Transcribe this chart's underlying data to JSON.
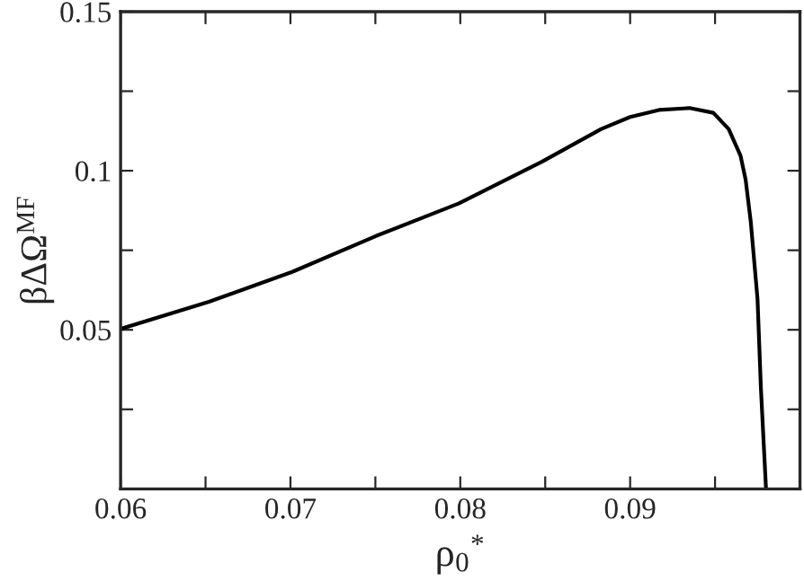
{
  "chart_data": {
    "type": "line",
    "xlabel": "ρ$_{0}$$^{*}$",
    "ylabel": "βΔΩ$^{MF}$",
    "x": [
      0.06,
      0.0652,
      0.0701,
      0.075,
      0.0799,
      0.0848,
      0.0883,
      0.09,
      0.0917,
      0.0935,
      0.0949,
      0.0958,
      0.0965,
      0.0968,
      0.0971,
      0.0975,
      0.0977,
      0.098
    ],
    "series": [
      {
        "color": "#000000",
        "values": [
          0.0503,
          0.0588,
          0.0682,
          0.0794,
          0.0897,
          0.1028,
          0.1131,
          0.1169,
          0.1191,
          0.1197,
          0.1182,
          0.1131,
          0.1047,
          0.0972,
          0.0841,
          0.0597,
          0.0316,
          0.0
        ]
      }
    ],
    "xlim": [
      0.06,
      0.1
    ],
    "ylim": [
      0,
      0.15
    ],
    "xticks": [
      0.06,
      {
        "value": 0.065,
        "label": null
      },
      0.07,
      {
        "value": 0.075,
        "label": null
      },
      0.08,
      {
        "value": 0.085,
        "label": null
      },
      0.09,
      {
        "value": 0.095,
        "label": null
      }
    ],
    "yticks": [
      {
        "value": 0.025,
        "label": null
      },
      0.05,
      {
        "value": 0.075,
        "label": null
      },
      0.1,
      {
        "value": 0.125,
        "label": null
      },
      0.15
    ],
    "grid": false,
    "legend": false,
    "marker": "none",
    "line_style": "solid"
  }
}
